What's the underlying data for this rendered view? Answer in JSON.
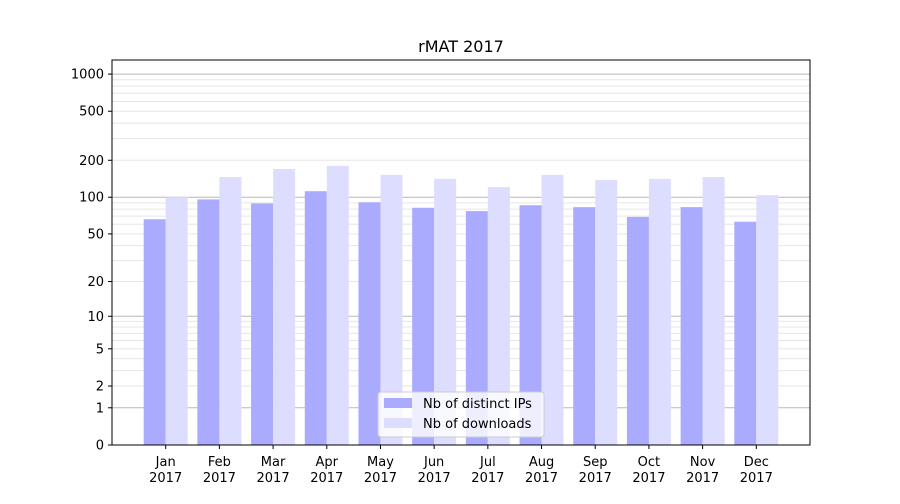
{
  "chart_data": {
    "type": "bar",
    "title": "rMAT 2017",
    "xlabel": "",
    "ylabel": "",
    "yscale": "log(y+1)",
    "ylim": [
      0,
      1300
    ],
    "yticks": [
      0,
      1,
      2,
      5,
      10,
      20,
      50,
      100,
      200,
      500,
      1000
    ],
    "grid": true,
    "legend_position": "lower center",
    "categories": [
      "Jan\n2017",
      "Feb\n2017",
      "Mar\n2017",
      "Apr\n2017",
      "May\n2017",
      "Jun\n2017",
      "Jul\n2017",
      "Aug\n2017",
      "Sep\n2017",
      "Oct\n2017",
      "Nov\n2017",
      "Dec\n2017"
    ],
    "series": [
      {
        "name": "Nb of distinct IPs",
        "color": "#aaaaff",
        "values": [
          66,
          96,
          89,
          112,
          91,
          82,
          77,
          86,
          83,
          69,
          83,
          63
        ]
      },
      {
        "name": "Nb of downloads",
        "color": "#ddddff",
        "values": [
          100,
          146,
          170,
          180,
          152,
          141,
          121,
          152,
          138,
          141,
          146,
          104
        ]
      }
    ]
  }
}
